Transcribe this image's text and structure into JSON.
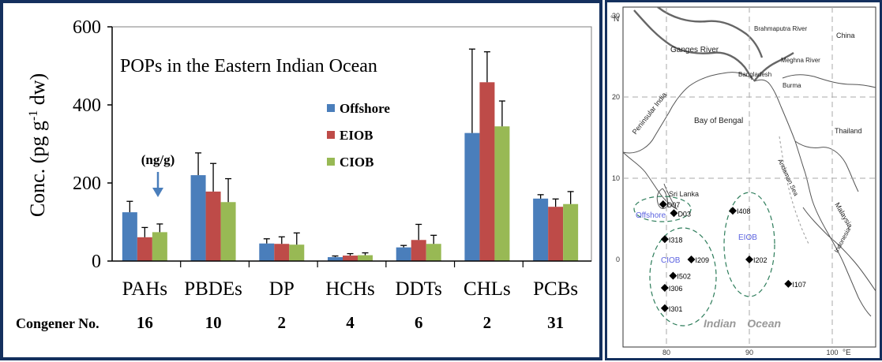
{
  "chart_data": {
    "type": "bar",
    "title": "POPs in the Eastern Indian Ocean",
    "ylabel": "Conc. (pg g",
    "ylabel_sup": "-1",
    "ylabel_tail": " dw)",
    "ylim": [
      0,
      600
    ],
    "yticks": [
      "0",
      "200",
      "400",
      "600"
    ],
    "categories": [
      "PAHs",
      "PBDEs",
      "DP",
      "HCHs",
      "DDTs",
      "CHLs",
      "PCBs"
    ],
    "series": [
      {
        "name": "Offshore",
        "color": "#4a7ebb",
        "values": [
          125,
          220,
          45,
          10,
          35,
          328,
          160
        ],
        "errors": [
          28,
          57,
          12,
          3,
          5,
          215,
          10
        ]
      },
      {
        "name": "EIOB",
        "color": "#be4b48",
        "values": [
          61,
          178,
          44,
          14,
          54,
          458,
          139
        ],
        "errors": [
          25,
          72,
          18,
          5,
          40,
          78,
          20
        ]
      },
      {
        "name": "CIOB",
        "color": "#98b954",
        "values": [
          74,
          151,
          42,
          15,
          44,
          345,
          146
        ],
        "errors": [
          21,
          60,
          30,
          6,
          22,
          65,
          32
        ]
      }
    ],
    "legend_position": "upper-middle",
    "annotation": {
      "text": "(ng/g)",
      "category": "PAHs",
      "arrow_color": "#4a7ebb"
    },
    "congener_label": "Congener No.",
    "congener_numbers": [
      "16",
      "10",
      "2",
      "4",
      "6",
      "2",
      "31"
    ]
  },
  "map": {
    "lat_ticks": [
      "0",
      "10",
      "20",
      "30"
    ],
    "lon_ticks": [
      "80",
      "90",
      "100"
    ],
    "lat_unit": "°N",
    "lon_unit": "°E",
    "regions": [
      "China",
      "Brahmaputra River",
      "Ganges River",
      "Meghna River",
      "Bangladesh",
      "Burma",
      "Peninsular India",
      "Bay of Bengal",
      "Thailand",
      "Andaman Sea",
      "Malaysia",
      "Indonesia",
      "Sri Lanka"
    ],
    "groups": [
      "Offshore",
      "EIOB",
      "CIOB"
    ],
    "ocean_label": [
      "Indian",
      "Ocean"
    ],
    "stations": [
      {
        "name": "D07",
        "lon": 79.6,
        "lat": 6.8
      },
      {
        "name": "D03",
        "lon": 80.9,
        "lat": 5.7
      },
      {
        "name": "I408",
        "lon": 88.0,
        "lat": 6.0
      },
      {
        "name": "I318",
        "lon": 79.8,
        "lat": 2.5
      },
      {
        "name": "I209",
        "lon": 83.0,
        "lat": 0.0
      },
      {
        "name": "I202",
        "lon": 90.0,
        "lat": 0.0
      },
      {
        "name": "I502",
        "lon": 80.8,
        "lat": -2.0
      },
      {
        "name": "I306",
        "lon": 79.8,
        "lat": -3.5
      },
      {
        "name": "I107",
        "lon": 94.7,
        "lat": -3.0
      },
      {
        "name": "I301",
        "lon": 79.8,
        "lat": -6.0
      }
    ]
  }
}
